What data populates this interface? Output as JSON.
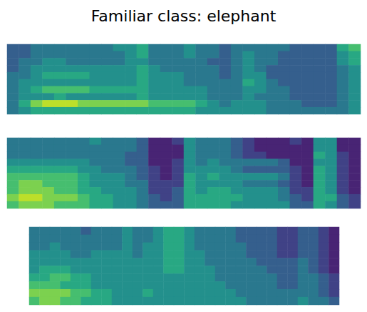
{
  "chart_data": {
    "type": "heatmap",
    "title": "Familiar class: elephant",
    "tick_labels": false,
    "zlim": [
      0,
      10
    ],
    "panels": [
      {
        "cells": [
          [
            3,
            3,
            4,
            4,
            4,
            4,
            4,
            4,
            4,
            5,
            5,
            6,
            4,
            4,
            4,
            5,
            4,
            4,
            3,
            4,
            4,
            4,
            4,
            4,
            3,
            3,
            3,
            3,
            6,
            7
          ],
          [
            3,
            3,
            4,
            4,
            4,
            4,
            4,
            4,
            4,
            4,
            5,
            6,
            4,
            4,
            4,
            5,
            4,
            4,
            3,
            4,
            5,
            4,
            4,
            3,
            3,
            3,
            3,
            3,
            5,
            6
          ],
          [
            3,
            4,
            4,
            5,
            5,
            4,
            4,
            4,
            4,
            4,
            5,
            5,
            4,
            4,
            4,
            4,
            4,
            3,
            3,
            4,
            5,
            4,
            4,
            3,
            3,
            3,
            3,
            3,
            5,
            6
          ],
          [
            3,
            4,
            5,
            5,
            5,
            5,
            5,
            5,
            5,
            5,
            5,
            6,
            5,
            4,
            4,
            4,
            4,
            4,
            3,
            4,
            5,
            4,
            3,
            3,
            3,
            3,
            3,
            3,
            4,
            5
          ],
          [
            4,
            4,
            5,
            6,
            6,
            6,
            6,
            5,
            5,
            5,
            5,
            6,
            5,
            5,
            5,
            4,
            4,
            4,
            3,
            4,
            5,
            5,
            3,
            3,
            3,
            3,
            3,
            3,
            4,
            5
          ],
          [
            4,
            5,
            5,
            5,
            5,
            5,
            5,
            5,
            5,
            5,
            5,
            6,
            5,
            5,
            5,
            4,
            4,
            4,
            4,
            4,
            6,
            5,
            4,
            3,
            3,
            3,
            3,
            3,
            4,
            5
          ],
          [
            4,
            5,
            6,
            7,
            7,
            7,
            7,
            6,
            6,
            6,
            6,
            6,
            5,
            5,
            5,
            5,
            5,
            4,
            4,
            4,
            5,
            5,
            4,
            4,
            3,
            3,
            3,
            3,
            4,
            5
          ],
          [
            4,
            5,
            5,
            5,
            6,
            5,
            5,
            5,
            5,
            5,
            5,
            6,
            5,
            5,
            5,
            5,
            5,
            4,
            4,
            4,
            5,
            4,
            4,
            4,
            3,
            3,
            3,
            3,
            4,
            5
          ],
          [
            4,
            6,
            8,
            9,
            9,
            9,
            8,
            8,
            8,
            8,
            8,
            8,
            7,
            7,
            7,
            7,
            6,
            5,
            4,
            5,
            5,
            5,
            4,
            4,
            4,
            3,
            3,
            3,
            4,
            5
          ],
          [
            4,
            5,
            6,
            6,
            6,
            6,
            6,
            6,
            6,
            6,
            6,
            6,
            6,
            6,
            6,
            6,
            5,
            5,
            5,
            5,
            5,
            5,
            4,
            4,
            4,
            4,
            4,
            4,
            4,
            5
          ]
        ]
      },
      {
        "cells": [
          [
            4,
            4,
            4,
            4,
            4,
            4,
            4,
            5,
            4,
            4,
            4,
            3,
            1,
            1,
            2,
            5,
            4,
            4,
            4,
            3,
            2,
            1,
            1,
            1,
            2,
            1,
            5,
            5,
            1,
            1
          ],
          [
            4,
            4,
            4,
            4,
            4,
            4,
            4,
            4,
            4,
            4,
            4,
            3,
            1,
            1,
            1,
            5,
            4,
            4,
            4,
            3,
            2,
            1,
            1,
            1,
            1,
            1,
            5,
            5,
            1,
            1
          ],
          [
            4,
            4,
            4,
            4,
            4,
            4,
            4,
            4,
            4,
            4,
            3,
            3,
            1,
            1,
            1,
            5,
            4,
            4,
            4,
            3,
            2,
            2,
            1,
            1,
            1,
            1,
            6,
            5,
            2,
            1
          ],
          [
            5,
            5,
            5,
            5,
            5,
            5,
            5,
            4,
            4,
            4,
            3,
            3,
            1,
            1,
            2,
            5,
            4,
            5,
            4,
            4,
            4,
            4,
            4,
            3,
            1,
            1,
            5,
            5,
            2,
            1
          ],
          [
            6,
            6,
            6,
            6,
            6,
            6,
            5,
            5,
            4,
            4,
            4,
            3,
            2,
            1,
            2,
            5,
            5,
            5,
            5,
            4,
            3,
            3,
            3,
            3,
            2,
            1,
            6,
            5,
            2,
            1
          ],
          [
            7,
            7,
            7,
            7,
            7,
            7,
            6,
            5,
            5,
            5,
            4,
            3,
            2,
            1,
            2,
            6,
            5,
            6,
            5,
            5,
            5,
            5,
            5,
            4,
            2,
            1,
            6,
            5,
            2,
            1
          ],
          [
            7,
            8,
            8,
            7,
            7,
            7,
            6,
            5,
            5,
            5,
            4,
            4,
            2,
            2,
            2,
            6,
            5,
            5,
            5,
            5,
            4,
            4,
            4,
            3,
            2,
            1,
            6,
            5,
            2,
            1
          ],
          [
            7,
            8,
            8,
            8,
            7,
            7,
            6,
            6,
            5,
            5,
            5,
            4,
            2,
            2,
            3,
            6,
            5,
            6,
            6,
            5,
            5,
            5,
            5,
            4,
            2,
            2,
            6,
            5,
            2,
            1
          ],
          [
            8,
            9,
            9,
            8,
            8,
            8,
            7,
            6,
            6,
            5,
            5,
            4,
            3,
            2,
            3,
            6,
            6,
            6,
            6,
            6,
            5,
            5,
            5,
            4,
            3,
            2,
            6,
            6,
            3,
            2
          ],
          [
            7,
            8,
            8,
            8,
            7,
            7,
            7,
            6,
            6,
            5,
            5,
            4,
            3,
            3,
            3,
            6,
            6,
            6,
            6,
            5,
            5,
            5,
            5,
            5,
            3,
            3,
            6,
            5,
            3,
            2
          ]
        ]
      },
      {
        "cells": [
          [
            4,
            4,
            4,
            4,
            4,
            3,
            4,
            4,
            4,
            5,
            4,
            4,
            5,
            6,
            6,
            5,
            4,
            4,
            4,
            4,
            3,
            3,
            3,
            3,
            2,
            2,
            3,
            3,
            2,
            1
          ],
          [
            4,
            4,
            4,
            4,
            4,
            4,
            4,
            4,
            4,
            5,
            4,
            4,
            5,
            6,
            6,
            5,
            4,
            4,
            4,
            4,
            3,
            3,
            3,
            3,
            2,
            2,
            3,
            3,
            2,
            1
          ],
          [
            4,
            4,
            5,
            4,
            4,
            4,
            4,
            4,
            4,
            5,
            4,
            5,
            5,
            6,
            6,
            5,
            4,
            4,
            4,
            4,
            4,
            3,
            3,
            3,
            2,
            2,
            3,
            3,
            2,
            1
          ],
          [
            5,
            5,
            5,
            5,
            4,
            4,
            5,
            5,
            5,
            5,
            4,
            5,
            5,
            6,
            6,
            5,
            5,
            4,
            4,
            4,
            4,
            3,
            3,
            3,
            2,
            2,
            3,
            3,
            2,
            1
          ],
          [
            5,
            5,
            5,
            5,
            5,
            5,
            5,
            5,
            5,
            5,
            5,
            5,
            5,
            6,
            6,
            5,
            5,
            4,
            4,
            4,
            4,
            4,
            3,
            3,
            3,
            3,
            4,
            3,
            2,
            1
          ],
          [
            5,
            6,
            6,
            6,
            5,
            5,
            5,
            5,
            5,
            5,
            5,
            5,
            5,
            6,
            6,
            5,
            5,
            5,
            4,
            4,
            4,
            4,
            4,
            3,
            3,
            3,
            4,
            3,
            2,
            1
          ],
          [
            6,
            6,
            7,
            7,
            6,
            6,
            5,
            5,
            5,
            5,
            5,
            5,
            5,
            5,
            5,
            5,
            5,
            5,
            4,
            4,
            4,
            4,
            4,
            4,
            3,
            3,
            4,
            4,
            3,
            2
          ],
          [
            7,
            7,
            7,
            6,
            6,
            6,
            5,
            5,
            5,
            5,
            5,
            5,
            5,
            5,
            5,
            5,
            5,
            5,
            5,
            4,
            4,
            4,
            4,
            4,
            3,
            3,
            4,
            4,
            3,
            2
          ],
          [
            8,
            8,
            8,
            8,
            7,
            7,
            6,
            6,
            5,
            5,
            5,
            6,
            5,
            5,
            5,
            5,
            5,
            5,
            5,
            5,
            4,
            4,
            4,
            4,
            4,
            4,
            4,
            4,
            3,
            2
          ],
          [
            7,
            8,
            8,
            7,
            7,
            6,
            6,
            6,
            5,
            5,
            5,
            5,
            5,
            5,
            5,
            5,
            5,
            5,
            5,
            5,
            5,
            4,
            4,
            4,
            4,
            4,
            5,
            4,
            4,
            3
          ]
        ]
      }
    ]
  }
}
